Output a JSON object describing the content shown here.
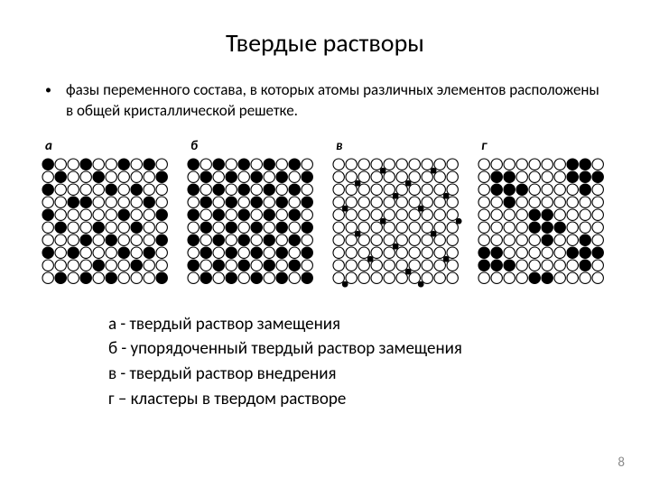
{
  "title": "Твердые растворы",
  "bullet": "фазы переменного состава, в которых атомы различных элементов расположены в общей кристаллической решетке.",
  "panels": {
    "a": {
      "label": "а"
    },
    "b": {
      "label": "б"
    },
    "v": {
      "label": "в"
    },
    "g": {
      "label": "г"
    }
  },
  "legend": {
    "l1": "а - твердый раствор замещения",
    "l2": "б - упорядоченный твердый раствор замещения",
    "l3": "в - твердый раствор внедрения",
    "l4": "г – кластеры в твердом растворе"
  },
  "page_number": "8",
  "lattice": {
    "rows": 10,
    "cols": 10,
    "cell": 14,
    "radius": 6.2,
    "small_radius": 2.8,
    "panel_size": 145,
    "colors": {
      "fill_black": "#000000",
      "fill_white": "#ffffff",
      "stroke": "#000000",
      "stroke_width": 1.1
    },
    "panel_a_black": [
      [
        0,
        0
      ],
      [
        0,
        3
      ],
      [
        0,
        6
      ],
      [
        0,
        8
      ],
      [
        1,
        1
      ],
      [
        1,
        4
      ],
      [
        1,
        9
      ],
      [
        2,
        0
      ],
      [
        2,
        5
      ],
      [
        2,
        7
      ],
      [
        3,
        2
      ],
      [
        3,
        3
      ],
      [
        3,
        8
      ],
      [
        4,
        0
      ],
      [
        4,
        6
      ],
      [
        4,
        9
      ],
      [
        5,
        1
      ],
      [
        5,
        4
      ],
      [
        5,
        7
      ],
      [
        6,
        3
      ],
      [
        6,
        5
      ],
      [
        6,
        9
      ],
      [
        7,
        0
      ],
      [
        7,
        2
      ],
      [
        7,
        6
      ],
      [
        7,
        8
      ],
      [
        8,
        4
      ],
      [
        8,
        7
      ],
      [
        9,
        1
      ],
      [
        9,
        3
      ],
      [
        9,
        5
      ],
      [
        9,
        9
      ]
    ],
    "panel_v_interstitial": [
      [
        0,
        3
      ],
      [
        0,
        7
      ],
      [
        1,
        1
      ],
      [
        1,
        5
      ],
      [
        2,
        4
      ],
      [
        2,
        8
      ],
      [
        3,
        0
      ],
      [
        3,
        6
      ],
      [
        4,
        3
      ],
      [
        4,
        9
      ],
      [
        5,
        1
      ],
      [
        5,
        7
      ],
      [
        6,
        4
      ],
      [
        7,
        2
      ],
      [
        7,
        8
      ],
      [
        8,
        5
      ],
      [
        9,
        0
      ],
      [
        9,
        6
      ]
    ],
    "panel_g_black": [
      [
        1,
        1
      ],
      [
        1,
        2
      ],
      [
        2,
        1
      ],
      [
        2,
        2
      ],
      [
        2,
        3
      ],
      [
        3,
        2
      ],
      [
        0,
        7
      ],
      [
        0,
        8
      ],
      [
        1,
        7
      ],
      [
        1,
        8
      ],
      [
        1,
        9
      ],
      [
        2,
        8
      ],
      [
        4,
        4
      ],
      [
        4,
        5
      ],
      [
        5,
        4
      ],
      [
        5,
        5
      ],
      [
        5,
        6
      ],
      [
        6,
        5
      ],
      [
        7,
        0
      ],
      [
        7,
        1
      ],
      [
        8,
        0
      ],
      [
        8,
        1
      ],
      [
        8,
        2
      ],
      [
        6,
        8
      ],
      [
        7,
        7
      ],
      [
        7,
        8
      ],
      [
        7,
        9
      ],
      [
        8,
        8
      ],
      [
        9,
        4
      ],
      [
        9,
        5
      ]
    ]
  }
}
